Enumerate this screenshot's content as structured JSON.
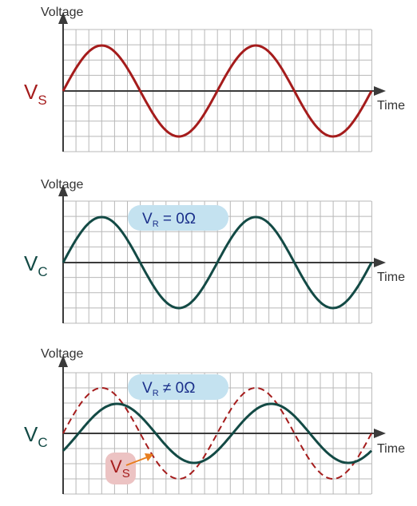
{
  "colors": {
    "source_wave": "#a51c1c",
    "capacitor_wave": "#134a45",
    "grid": "#b8b8b8",
    "axis": "#3a3a3a",
    "pill_fill": "#c4e2f0",
    "pill_text": "#1a2f8a",
    "vs_tag_fill": "#ecc3c3",
    "vs_arrow": "#e87e1e",
    "vs_label": "#a51c1c",
    "vc_label": "#134a45"
  },
  "panels": [
    {
      "y_axis_label": "Voltage",
      "x_axis_label": "Time",
      "side_label": {
        "main": "V",
        "sub": "S"
      },
      "pill": null
    },
    {
      "y_axis_label": "Voltage",
      "x_axis_label": "Time",
      "side_label": {
        "main": "V",
        "sub": "C"
      },
      "pill": {
        "pre": "V",
        "sub": "R",
        "post": " = 0Ω"
      }
    },
    {
      "y_axis_label": "Voltage",
      "x_axis_label": "Time",
      "side_label": {
        "main": "V",
        "sub": "C"
      },
      "pill": {
        "pre": "V",
        "sub": "R",
        "post": " ≠ 0Ω"
      },
      "callout": {
        "main": "V",
        "sub": "S"
      }
    }
  ],
  "waves": {
    "cycles_shown": 2,
    "panel_1": [
      {
        "name": "source",
        "amplitude": 1.0,
        "phase_lag_cycles": 0,
        "style": "solid"
      }
    ],
    "panel_2": [
      {
        "name": "capacitor",
        "amplitude": 1.0,
        "phase_lag_cycles": 0,
        "style": "solid"
      }
    ],
    "panel_3": [
      {
        "name": "source",
        "amplitude": 1.0,
        "phase_lag_cycles": 0,
        "style": "dashed"
      },
      {
        "name": "capacitor",
        "amplitude": 0.65,
        "phase_lag_cycles": 0.1,
        "style": "solid"
      }
    ]
  }
}
